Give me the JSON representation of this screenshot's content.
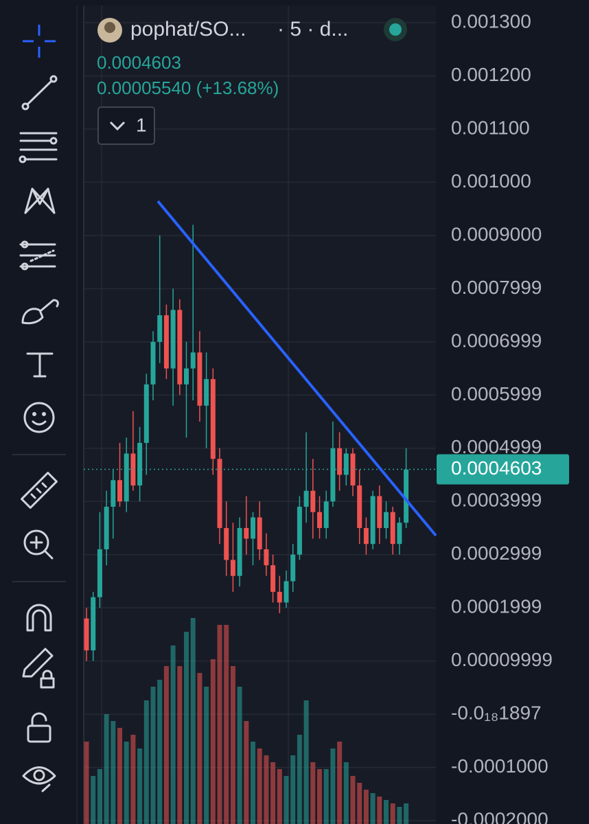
{
  "chart_data": {
    "type": "candlestick",
    "symbol": "pophat/SO...",
    "interval": "· 5 · d...",
    "last_price": 0.0004603,
    "change": "0.00005540 (+13.68%)",
    "collapse_count": "1",
    "up_color": "#26a69a",
    "down_color": "#ef5350",
    "ylim": [
      -0.0002064,
      0.0013426
    ],
    "grid": true,
    "yticks": [
      {
        "value": 0.0013,
        "label": "0.001300"
      },
      {
        "value": 0.0012,
        "label": "0.001200"
      },
      {
        "value": 0.0011,
        "label": "0.001100"
      },
      {
        "value": 0.001,
        "label": "0.001000"
      },
      {
        "value": 0.0009,
        "label": "0.0009000"
      },
      {
        "value": 0.0007999,
        "label": "0.0007999"
      },
      {
        "value": 0.0006999,
        "label": "0.0006999"
      },
      {
        "value": 0.0005999,
        "label": "0.0005999"
      },
      {
        "value": 0.0004999,
        "label": "0.0004999"
      },
      {
        "value": 0.0003999,
        "label": "0.0003999"
      },
      {
        "value": 0.0002999,
        "label": "0.0002999"
      },
      {
        "value": 0.0001999,
        "label": "0.0001999"
      },
      {
        "value": 9.999e-05,
        "label": "0.00009999"
      },
      {
        "value": -1.897e-19,
        "label": "-0.0₁₈1897"
      },
      {
        "value": -0.0001,
        "label": "-0.0001000"
      },
      {
        "value": -0.0002,
        "label": "-0.0002000"
      }
    ],
    "open": [
      0.00018,
      0.00012,
      0.00022,
      0.00031,
      0.00039,
      0.00044,
      0.0004,
      0.00049,
      0.00043,
      0.00051,
      0.00062,
      0.0007,
      0.00075,
      0.00065,
      0.00076,
      0.00062,
      0.00065,
      0.00068,
      0.00058,
      0.00063,
      0.00048,
      0.00035,
      0.00029,
      0.00026,
      0.00035,
      0.00033,
      0.00037,
      0.00031,
      0.00028,
      0.00023,
      0.00021,
      0.00025,
      0.0003,
      0.00039,
      0.00042,
      0.00038,
      0.00035,
      0.0004,
      0.0005,
      0.00045,
      0.00049,
      0.00043,
      0.00035,
      0.00032,
      0.00041,
      0.00035,
      0.00038,
      0.00032,
      0.00036
    ],
    "high": [
      0.0002,
      0.00023,
      0.00038,
      0.00042,
      0.00046,
      0.00051,
      0.00052,
      0.00057,
      0.00054,
      0.00064,
      0.00072,
      0.0009,
      0.00077,
      0.0008,
      0.00078,
      0.0007,
      0.00092,
      0.00072,
      0.00068,
      0.00065,
      0.0005,
      0.0004,
      0.00036,
      0.00037,
      0.00041,
      0.00038,
      0.0004,
      0.00034,
      0.0003,
      0.00026,
      0.00027,
      0.00032,
      0.00041,
      0.00053,
      0.00048,
      0.00041,
      0.00042,
      0.00055,
      0.00053,
      0.0005,
      0.0005,
      0.00046,
      0.00037,
      0.00042,
      0.00043,
      0.0004,
      0.00039,
      0.00037,
      0.0005
    ],
    "low": [
      0.0001,
      0.0001,
      0.0002,
      0.00028,
      0.00033,
      0.00039,
      0.00038,
      0.00042,
      0.0004,
      0.00045,
      0.00059,
      0.00066,
      0.00063,
      0.00058,
      0.0006,
      0.00052,
      0.00059,
      0.00055,
      0.0005,
      0.00045,
      0.00032,
      0.00026,
      0.00023,
      0.00024,
      0.0003,
      0.00028,
      0.00029,
      0.00026,
      0.00021,
      0.00019,
      0.0002,
      0.00023,
      0.00029,
      0.00036,
      0.00033,
      0.00033,
      0.00033,
      0.00039,
      0.00042,
      0.00043,
      0.00041,
      0.00032,
      0.0003,
      0.00031,
      0.00032,
      0.00033,
      0.0003,
      0.0003,
      0.00035
    ],
    "close": [
      0.00012,
      0.00022,
      0.00031,
      0.00039,
      0.00044,
      0.0004,
      0.00049,
      0.00043,
      0.00051,
      0.00062,
      0.0007,
      0.00075,
      0.00065,
      0.00076,
      0.00062,
      0.00065,
      0.00068,
      0.00058,
      0.00063,
      0.00048,
      0.00035,
      0.00029,
      0.00026,
      0.00035,
      0.00033,
      0.00037,
      0.00031,
      0.00028,
      0.00023,
      0.00021,
      0.00025,
      0.0003,
      0.00039,
      0.00042,
      0.00038,
      0.00035,
      0.0004,
      0.0005,
      0.00045,
      0.00049,
      0.00043,
      0.00035,
      0.00032,
      0.00041,
      0.00035,
      0.00038,
      0.00032,
      0.00036,
      0.00046
    ],
    "volumes": [
      120,
      70,
      80,
      160,
      150,
      140,
      120,
      130,
      110,
      180,
      200,
      210,
      230,
      260,
      230,
      280,
      300,
      220,
      200,
      240,
      290,
      290,
      230,
      200,
      150,
      120,
      110,
      100,
      90,
      80,
      70,
      100,
      130,
      180,
      90,
      80,
      80,
      110,
      120,
      90,
      70,
      60,
      50,
      45,
      40,
      35,
      30,
      25,
      30
    ]
  }
}
